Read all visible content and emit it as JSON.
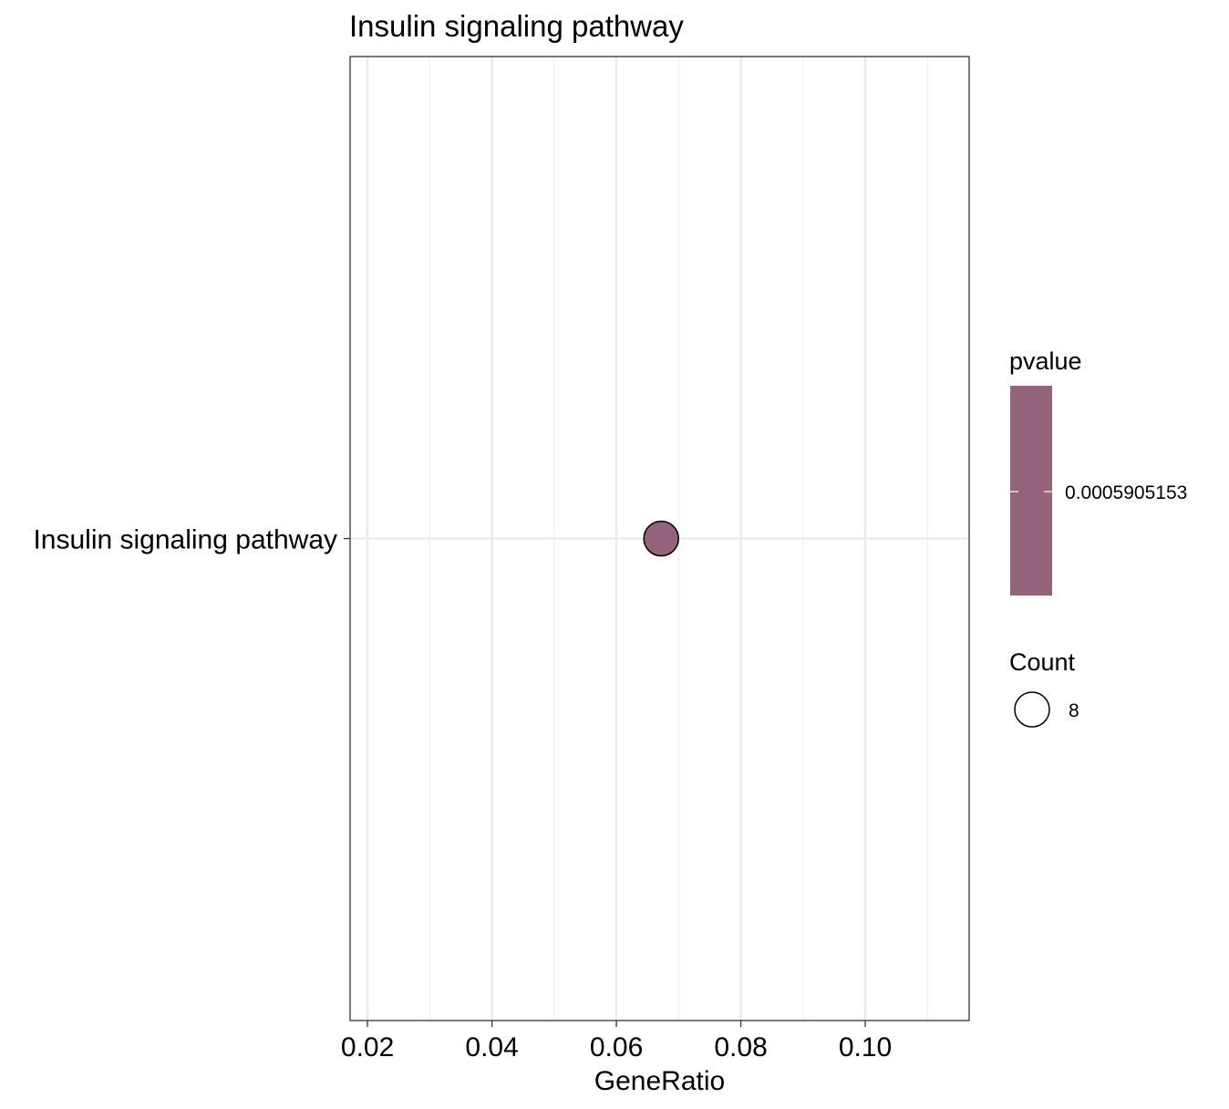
{
  "chart_data": {
    "type": "scatter",
    "title": "Insulin signaling pathway",
    "xlabel": "GeneRatio",
    "ylabel": "",
    "xlim": [
      0.0172,
      0.1167
    ],
    "x_ticks": [
      0.02,
      0.04,
      0.06,
      0.08,
      0.1
    ],
    "x_tick_labels": [
      "0.02",
      "0.04",
      "0.06",
      "0.08",
      "0.10"
    ],
    "x_minor_ticks": [
      0.03,
      0.05,
      0.07,
      0.09,
      0.11
    ],
    "categories": [
      "Insulin signaling pathway"
    ],
    "points": [
      {
        "category": "Insulin signaling pathway",
        "x": 0.0672,
        "count": 8,
        "pvalue": 0.0005905153,
        "color": "#94637b"
      }
    ],
    "grid": true,
    "legend_placement": "right",
    "legends": {
      "color": {
        "title": "pvalue",
        "ticks": [
          0.0005905153
        ],
        "tick_labels": [
          "0.0005905153"
        ],
        "color": "#94637b"
      },
      "size": {
        "title": "Count",
        "values": [
          8
        ],
        "labels": [
          "8"
        ]
      }
    },
    "colors": {
      "point_fill": "#94637b",
      "point_stroke": "#000000",
      "grid_major": "#ebebeb",
      "grid_minor": "#f2f2f2",
      "panel_border": "#333333"
    }
  }
}
